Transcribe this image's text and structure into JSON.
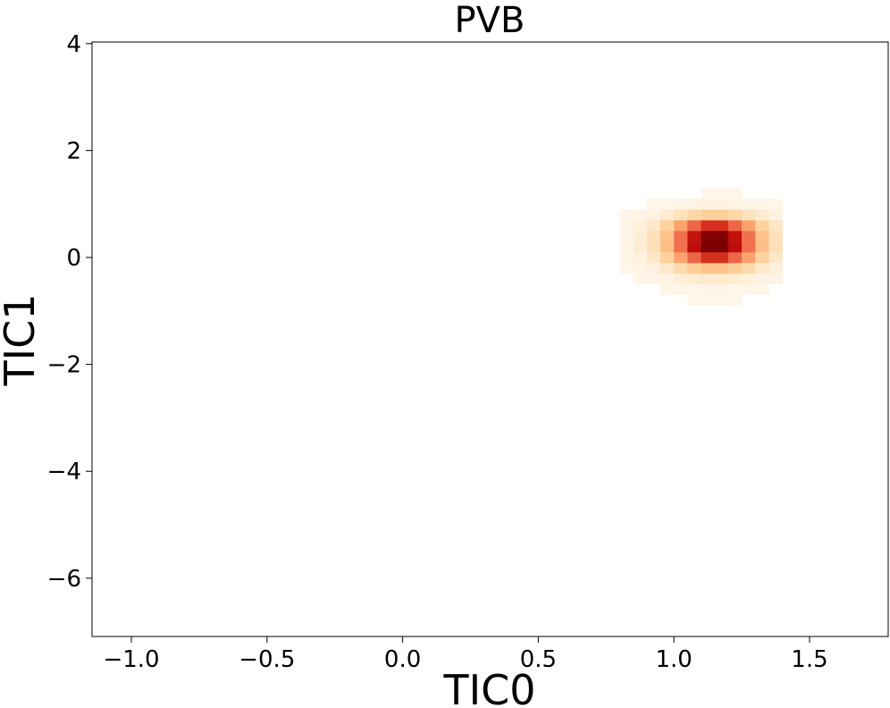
{
  "chart_data": {
    "type": "hist2d",
    "title": "PVB",
    "xlabel": "TIC0",
    "ylabel": "TIC1",
    "colormap": "OrRd",
    "xlim": [
      -1.145,
      1.79
    ],
    "ylim": [
      -7.09,
      4.03
    ],
    "xticks": [
      {
        "value": -1,
        "label": "−1.0"
      },
      {
        "value": -0.5,
        "label": "−0.5"
      },
      {
        "value": 0,
        "label": "0.0"
      },
      0.5,
      {
        "value": 1,
        "label": "1.0"
      },
      1.5
    ],
    "yticks": [
      {
        "value": -6,
        "label": "−6"
      },
      {
        "value": -4,
        "label": "−4"
      },
      {
        "value": -2,
        "label": "−2"
      },
      0,
      2,
      4
    ],
    "xbins": [
      0.8,
      0.85,
      0.9,
      0.95,
      1.0,
      1.05,
      1.1,
      1.15,
      1.2,
      1.25,
      1.3,
      1.35,
      1.4
    ],
    "ybins": [
      -0.9,
      -0.7,
      -0.5,
      -0.3,
      -0.1,
      0.1,
      0.3,
      0.5,
      0.7,
      0.9,
      1.1,
      1.3
    ],
    "counts": [
      [
        0,
        0,
        0,
        0,
        0,
        1,
        1,
        1,
        1,
        0,
        0,
        0
      ],
      [
        0,
        0,
        0,
        1,
        1,
        1,
        2,
        2,
        1,
        1,
        1,
        0
      ],
      [
        0,
        1,
        2,
        3,
        6,
        8,
        9,
        9,
        8,
        6,
        3,
        2
      ],
      [
        1,
        2,
        5,
        11,
        19,
        26,
        31,
        31,
        26,
        19,
        11,
        5
      ],
      [
        2,
        5,
        12,
        24,
        41,
        58,
        70,
        70,
        58,
        41,
        24,
        12
      ],
      [
        2,
        7,
        16,
        33,
        55,
        78,
        93,
        93,
        78,
        55,
        33,
        16
      ],
      [
        2,
        7,
        16,
        32,
        55,
        77,
        92,
        92,
        77,
        55,
        32,
        16
      ],
      [
        2,
        5,
        12,
        24,
        41,
        58,
        70,
        70,
        58,
        41,
        24,
        12
      ],
      [
        1,
        2,
        4,
        9,
        15,
        21,
        25,
        25,
        21,
        15,
        9,
        4
      ],
      [
        0,
        0,
        1,
        1,
        2,
        3,
        4,
        4,
        3,
        2,
        1,
        1
      ],
      [
        0,
        0,
        0,
        0,
        0,
        0,
        1,
        1,
        1,
        0,
        0,
        0
      ]
    ]
  }
}
